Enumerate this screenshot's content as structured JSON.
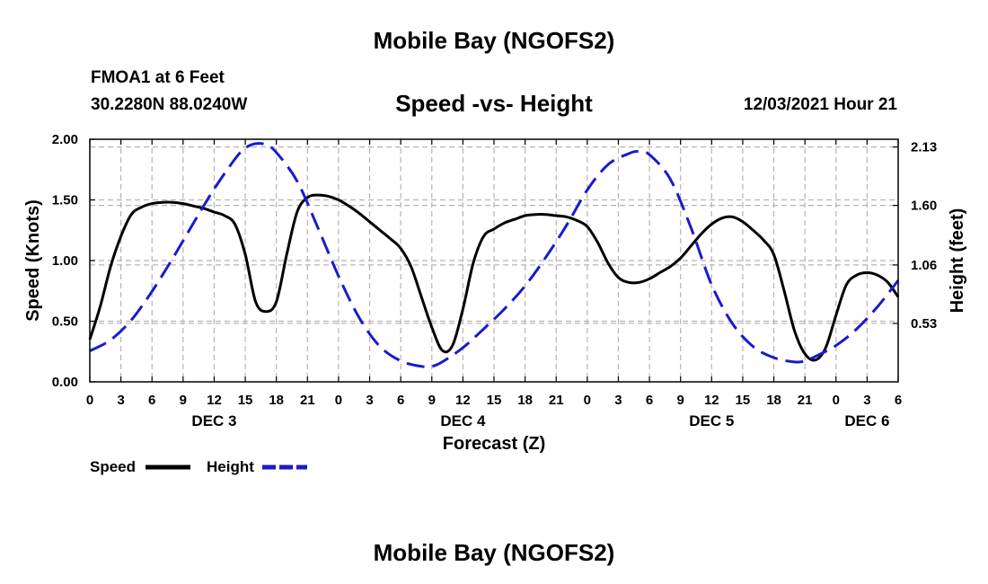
{
  "page": {
    "title": "Mobile Bay (NGOFS2)",
    "station": "FMOA1 at 6 Feet",
    "coords": "30.2280N  88.0240W",
    "chart_title": "Speed -vs- Height",
    "run_time": "12/03/2021 Hour 21",
    "footer_title": "Mobile Bay (NGOFS2)"
  },
  "chart_data": {
    "type": "line",
    "title": "Speed -vs- Height",
    "xlabel": "Forecast (Z)",
    "ylabel": "Speed (Knots)",
    "y2label": "Height (feet)",
    "x_range": [
      "2021-12-03T00:00Z",
      "2021-12-06T06:00Z"
    ],
    "ylim": [
      0,
      2.0
    ],
    "y2lim": [
      0,
      2.2
    ],
    "y_ticks": [
      "0.00",
      "0.50",
      "1.00",
      "1.50",
      "2.00"
    ],
    "y2_ticks": [
      "0.53",
      "1.06",
      "1.60",
      "2.13"
    ],
    "x_tick_labels": [
      "0",
      "3",
      "6",
      "9",
      "12",
      "15",
      "18",
      "21",
      "0",
      "3",
      "6",
      "9",
      "12",
      "15",
      "18",
      "21",
      "0",
      "3",
      "6",
      "9",
      "12",
      "15",
      "18",
      "21",
      "0",
      "3",
      "6"
    ],
    "day_labels": [
      "DEC 3",
      "DEC 4",
      "DEC 5",
      "DEC 6"
    ],
    "grid": true,
    "legend_position": "bottom-left",
    "colors": {
      "speed": "#000000",
      "height": "#1a1acc",
      "grid": "#b4b4b4"
    },
    "series": [
      {
        "name": "Speed",
        "axis": "left",
        "style": "solid",
        "points": [
          [
            "2021-12-03T00:00Z",
            0.35
          ],
          [
            "2021-12-03T01:00Z",
            0.62
          ],
          [
            "2021-12-03T02:00Z",
            0.95
          ],
          [
            "2021-12-03T03:00Z",
            1.2
          ],
          [
            "2021-12-03T04:00Z",
            1.38
          ],
          [
            "2021-12-03T05:00Z",
            1.44
          ],
          [
            "2021-12-03T06:00Z",
            1.47
          ],
          [
            "2021-12-03T07:00Z",
            1.48
          ],
          [
            "2021-12-03T08:00Z",
            1.48
          ],
          [
            "2021-12-03T09:00Z",
            1.47
          ],
          [
            "2021-12-03T10:00Z",
            1.45
          ],
          [
            "2021-12-03T11:00Z",
            1.43
          ],
          [
            "2021-12-03T12:00Z",
            1.4
          ],
          [
            "2021-12-03T13:00Z",
            1.37
          ],
          [
            "2021-12-03T14:00Z",
            1.3
          ],
          [
            "2021-12-03T15:00Z",
            1.05
          ],
          [
            "2021-12-03T16:00Z",
            0.66
          ],
          [
            "2021-12-03T17:00Z",
            0.58
          ],
          [
            "2021-12-03T18:00Z",
            0.66
          ],
          [
            "2021-12-03T19:00Z",
            1.05
          ],
          [
            "2021-12-03T20:00Z",
            1.4
          ],
          [
            "2021-12-03T21:00Z",
            1.52
          ],
          [
            "2021-12-03T22:00Z",
            1.54
          ],
          [
            "2021-12-03T23:00Z",
            1.53
          ],
          [
            "2021-12-04T00:00Z",
            1.5
          ],
          [
            "2021-12-04T01:00Z",
            1.45
          ],
          [
            "2021-12-04T02:00Z",
            1.39
          ],
          [
            "2021-12-04T03:00Z",
            1.32
          ],
          [
            "2021-12-04T04:00Z",
            1.25
          ],
          [
            "2021-12-04T05:00Z",
            1.18
          ],
          [
            "2021-12-04T06:00Z",
            1.1
          ],
          [
            "2021-12-04T07:00Z",
            0.95
          ],
          [
            "2021-12-04T08:00Z",
            0.7
          ],
          [
            "2021-12-04T09:00Z",
            0.45
          ],
          [
            "2021-12-04T10:00Z",
            0.26
          ],
          [
            "2021-12-04T11:00Z",
            0.3
          ],
          [
            "2021-12-04T12:00Z",
            0.6
          ],
          [
            "2021-12-04T13:00Z",
            0.98
          ],
          [
            "2021-12-04T14:00Z",
            1.2
          ],
          [
            "2021-12-04T15:00Z",
            1.26
          ],
          [
            "2021-12-04T16:00Z",
            1.31
          ],
          [
            "2021-12-04T17:00Z",
            1.34
          ],
          [
            "2021-12-04T18:00Z",
            1.37
          ],
          [
            "2021-12-04T19:00Z",
            1.38
          ],
          [
            "2021-12-04T20:00Z",
            1.38
          ],
          [
            "2021-12-04T21:00Z",
            1.37
          ],
          [
            "2021-12-04T22:00Z",
            1.36
          ],
          [
            "2021-12-04T23:00Z",
            1.33
          ],
          [
            "2021-12-05T00:00Z",
            1.28
          ],
          [
            "2021-12-05T01:00Z",
            1.15
          ],
          [
            "2021-12-05T02:00Z",
            0.98
          ],
          [
            "2021-12-05T03:00Z",
            0.86
          ],
          [
            "2021-12-05T04:00Z",
            0.82
          ],
          [
            "2021-12-05T05:00Z",
            0.82
          ],
          [
            "2021-12-05T06:00Z",
            0.85
          ],
          [
            "2021-12-05T07:00Z",
            0.9
          ],
          [
            "2021-12-05T08:00Z",
            0.95
          ],
          [
            "2021-12-05T09:00Z",
            1.02
          ],
          [
            "2021-12-05T10:00Z",
            1.12
          ],
          [
            "2021-12-05T11:00Z",
            1.22
          ],
          [
            "2021-12-05T12:00Z",
            1.3
          ],
          [
            "2021-12-05T13:00Z",
            1.35
          ],
          [
            "2021-12-05T14:00Z",
            1.36
          ],
          [
            "2021-12-05T15:00Z",
            1.32
          ],
          [
            "2021-12-05T16:00Z",
            1.25
          ],
          [
            "2021-12-05T17:00Z",
            1.17
          ],
          [
            "2021-12-05T18:00Z",
            1.05
          ],
          [
            "2021-12-05T19:00Z",
            0.75
          ],
          [
            "2021-12-05T20:00Z",
            0.42
          ],
          [
            "2021-12-05T21:00Z",
            0.23
          ],
          [
            "2021-12-05T22:00Z",
            0.18
          ],
          [
            "2021-12-05T23:00Z",
            0.28
          ],
          [
            "2021-12-06T00:00Z",
            0.55
          ],
          [
            "2021-12-06T01:00Z",
            0.8
          ],
          [
            "2021-12-06T02:00Z",
            0.88
          ],
          [
            "2021-12-06T03:00Z",
            0.9
          ],
          [
            "2021-12-06T04:00Z",
            0.88
          ],
          [
            "2021-12-06T05:00Z",
            0.82
          ],
          [
            "2021-12-06T06:00Z",
            0.7
          ]
        ]
      },
      {
        "name": "Height",
        "axis": "right",
        "style": "dashed",
        "points": [
          [
            "2021-12-03T00:00Z",
            0.28
          ],
          [
            "2021-12-03T02:00Z",
            0.38
          ],
          [
            "2021-12-03T04:00Z",
            0.56
          ],
          [
            "2021-12-03T06:00Z",
            0.82
          ],
          [
            "2021-12-03T08:00Z",
            1.12
          ],
          [
            "2021-12-03T10:00Z",
            1.44
          ],
          [
            "2021-12-03T12:00Z",
            1.75
          ],
          [
            "2021-12-03T14:00Z",
            2.02
          ],
          [
            "2021-12-03T15:00Z",
            2.12
          ],
          [
            "2021-12-03T16:00Z",
            2.16
          ],
          [
            "2021-12-03T17:00Z",
            2.15
          ],
          [
            "2021-12-03T18:00Z",
            2.08
          ],
          [
            "2021-12-03T20:00Z",
            1.82
          ],
          [
            "2021-12-03T22:00Z",
            1.4
          ],
          [
            "2021-12-04T00:00Z",
            0.96
          ],
          [
            "2021-12-04T02:00Z",
            0.58
          ],
          [
            "2021-12-04T04:00Z",
            0.32
          ],
          [
            "2021-12-04T06:00Z",
            0.19
          ],
          [
            "2021-12-04T08:00Z",
            0.14
          ],
          [
            "2021-12-04T09:00Z",
            0.14
          ],
          [
            "2021-12-04T10:00Z",
            0.18
          ],
          [
            "2021-12-04T12:00Z",
            0.31
          ],
          [
            "2021-12-04T14:00Z",
            0.48
          ],
          [
            "2021-12-04T16:00Z",
            0.66
          ],
          [
            "2021-12-04T18:00Z",
            0.87
          ],
          [
            "2021-12-04T20:00Z",
            1.13
          ],
          [
            "2021-12-04T22:00Z",
            1.42
          ],
          [
            "2021-12-05T00:00Z",
            1.74
          ],
          [
            "2021-12-05T02:00Z",
            1.97
          ],
          [
            "2021-12-05T04:00Z",
            2.07
          ],
          [
            "2021-12-05T05:00Z",
            2.09
          ],
          [
            "2021-12-05T06:00Z",
            2.06
          ],
          [
            "2021-12-05T08:00Z",
            1.84
          ],
          [
            "2021-12-05T10:00Z",
            1.4
          ],
          [
            "2021-12-05T12:00Z",
            0.88
          ],
          [
            "2021-12-05T14:00Z",
            0.53
          ],
          [
            "2021-12-05T16:00Z",
            0.32
          ],
          [
            "2021-12-05T18:00Z",
            0.22
          ],
          [
            "2021-12-05T20:00Z",
            0.18
          ],
          [
            "2021-12-05T21:00Z",
            0.19
          ],
          [
            "2021-12-05T22:00Z",
            0.23
          ],
          [
            "2021-12-06T00:00Z",
            0.33
          ],
          [
            "2021-12-06T02:00Z",
            0.48
          ],
          [
            "2021-12-06T04:00Z",
            0.68
          ],
          [
            "2021-12-06T06:00Z",
            0.92
          ]
        ]
      }
    ]
  }
}
